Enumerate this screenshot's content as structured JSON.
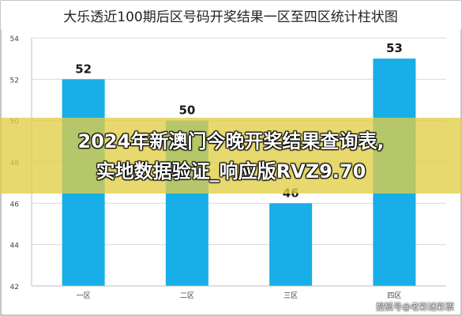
{
  "chart_data": {
    "type": "bar",
    "title": "大乐透近100期后区号码开奖结果一区至四区统计柱状图",
    "categories": [
      "一区",
      "二区",
      "三区",
      "四区"
    ],
    "values": [
      52,
      50,
      46,
      53
    ],
    "data_labels": [
      "52",
      "50",
      "46",
      "53"
    ],
    "yticks": [
      "42",
      "44",
      "46",
      "48",
      "50",
      "52",
      "54"
    ],
    "ylim": [
      42,
      54
    ],
    "grid": true,
    "bar_color": "#18aee8"
  },
  "overlay": {
    "line1": "2024年新澳门今晚开奖结果查询表,",
    "line2": "实地数据验证_响应版RVZ9.70"
  },
  "watermark": "搜狐号@老彩迷彩票"
}
